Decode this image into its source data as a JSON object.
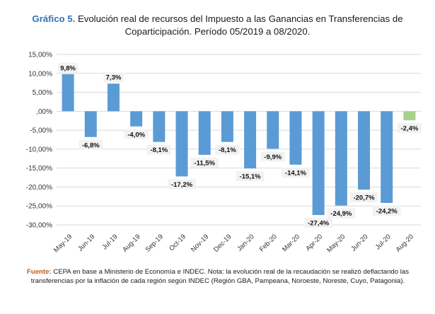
{
  "title": {
    "prefix": "Gráfico 5.",
    "line1": "Evolución real de recursos del Impuesto a las Ganancias en Transferencias de",
    "line2": "Coparticipación. Período 05/2019 a 08/2020."
  },
  "footnote": {
    "label": "Fuente:",
    "text": "CEPA en base a Ministerio de Economía e INDEC. Nota: la evolución real de la recaudación se realizó deflactando las transferencias por la inflación de cada región según INDEC (Región GBA, Pampeana, Noroeste, Noreste, Cuyo, Patagonia)."
  },
  "colors": {
    "bar": "#5b9bd5",
    "last_bar": "#a9d18e",
    "grid": "#d9d9d9",
    "label_bg": "#f2f2f2"
  },
  "chart_data": {
    "type": "bar",
    "categories": [
      "May-19",
      "Jun-19",
      "Jul-19",
      "Aug-19",
      "Sep-19",
      "Oct-19",
      "Nov-19",
      "Dec-19",
      "Jan-20",
      "Feb-20",
      "Mar-20",
      "Apr-20",
      "May-20",
      "Jun-20",
      "Jul-20",
      "Aug-20"
    ],
    "values": [
      9.8,
      -6.8,
      7.3,
      -4.0,
      -8.1,
      -17.2,
      -11.5,
      -8.1,
      -15.1,
      -9.9,
      -14.1,
      -27.4,
      -24.9,
      -20.7,
      -24.2,
      -2.4
    ],
    "data_labels": [
      "9,8%",
      "-6,8%",
      "7,3%",
      "-4,0%",
      "-8,1%",
      "-17,2%",
      "-11,5%",
      "-8,1%",
      "-15,1%",
      "-9,9%",
      "-14,1%",
      "-27,4%",
      "-24,9%",
      "-20,7%",
      "-24,2%",
      "-2,4%"
    ],
    "yticks": [
      15,
      10,
      5,
      0,
      -5,
      -10,
      -15,
      -20,
      -25,
      -30
    ],
    "ytick_labels": [
      "15,00%",
      "10,00%",
      "5,00%",
      ",00%",
      "-5,00%",
      "-10,00%",
      "-15,00%",
      "-20,00%",
      "-25,00%",
      "-30,00%"
    ],
    "ylim": [
      -30,
      15
    ],
    "grid": true,
    "xlabel": "",
    "ylabel": ""
  }
}
